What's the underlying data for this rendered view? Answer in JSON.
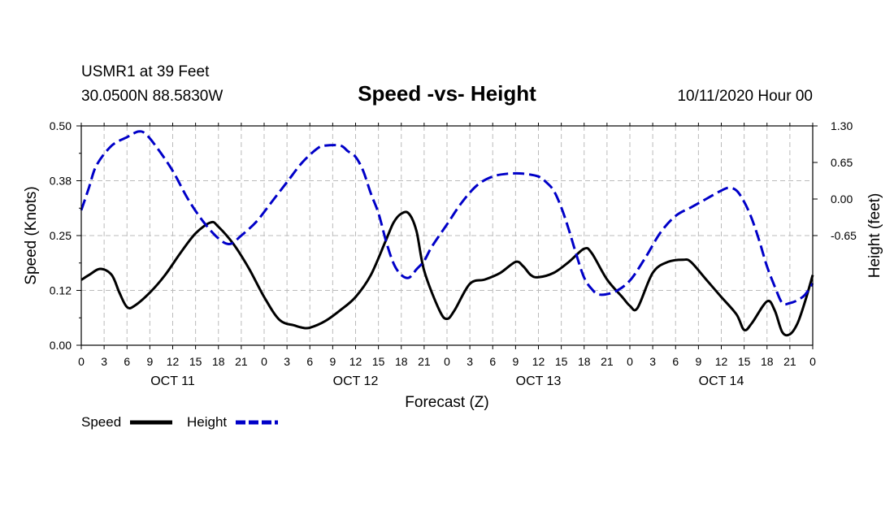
{
  "header": {
    "station": "USMR1 at 39 Feet",
    "location": "30.0500N 88.5830W",
    "title": "Speed -vs- Height",
    "datetime": "10/11/2020 Hour 00"
  },
  "chart_data": {
    "type": "line",
    "title": "Speed -vs- Height",
    "xlabel": "Forecast (Z)",
    "ylabel_left": "Speed (Knots)",
    "ylabel_right": "Height (feet)",
    "x_hours_range": [
      0,
      96
    ],
    "ylim_left": [
      0,
      0.5
    ],
    "ylim_right": [
      -2.6,
      1.3
    ],
    "yticks_left": [
      "0.00",
      "0.12",
      "0.25",
      "0.38",
      "0.50"
    ],
    "yticks_left_values": [
      0,
      0.125,
      0.25,
      0.375,
      0.5
    ],
    "yticks_right": [
      "1.30",
      "0.65",
      "0.00",
      "-0.65"
    ],
    "yticks_right_values": [
      1.3,
      0.65,
      0,
      -0.65
    ],
    "xticks": [
      "0",
      "3",
      "6",
      "9",
      "12",
      "15",
      "18",
      "21",
      "0",
      "3",
      "6",
      "9",
      "12",
      "15",
      "18",
      "21",
      "0",
      "3",
      "6",
      "9",
      "12",
      "15",
      "18",
      "21",
      "0",
      "3",
      "6",
      "9",
      "12",
      "15",
      "18",
      "21",
      "0"
    ],
    "day_labels": [
      {
        "label": "OCT 11",
        "hour": 12
      },
      {
        "label": "OCT 12",
        "hour": 36
      },
      {
        "label": "OCT 13",
        "hour": 60
      },
      {
        "label": "OCT 14",
        "hour": 84
      }
    ],
    "grid": true,
    "legend_position": "bottom-left",
    "series": [
      {
        "name": "Speed",
        "axis": "left",
        "color": "#000000",
        "dash": false,
        "points": [
          [
            0,
            0.149
          ],
          [
            1,
            0.16
          ],
          [
            2.5,
            0.174
          ],
          [
            4,
            0.16
          ],
          [
            5,
            0.12
          ],
          [
            6,
            0.087
          ],
          [
            7,
            0.09
          ],
          [
            9,
            0.12
          ],
          [
            11,
            0.16
          ],
          [
            13,
            0.21
          ],
          [
            15,
            0.255
          ],
          [
            17,
            0.28
          ],
          [
            18,
            0.27
          ],
          [
            20,
            0.23
          ],
          [
            22,
            0.175
          ],
          [
            24,
            0.11
          ],
          [
            26,
            0.058
          ],
          [
            28,
            0.045
          ],
          [
            29,
            0.04
          ],
          [
            30,
            0.04
          ],
          [
            32,
            0.055
          ],
          [
            34,
            0.08
          ],
          [
            36,
            0.11
          ],
          [
            38,
            0.16
          ],
          [
            40,
            0.24
          ],
          [
            41,
            0.28
          ],
          [
            42,
            0.3
          ],
          [
            43,
            0.3
          ],
          [
            44,
            0.26
          ],
          [
            45,
            0.17
          ],
          [
            47,
            0.08
          ],
          [
            48,
            0.06
          ],
          [
            49,
            0.08
          ],
          [
            51,
            0.14
          ],
          [
            53,
            0.15
          ],
          [
            55,
            0.165
          ],
          [
            57,
            0.19
          ],
          [
            58,
            0.18
          ],
          [
            59,
            0.16
          ],
          [
            60,
            0.155
          ],
          [
            62,
            0.165
          ],
          [
            64,
            0.19
          ],
          [
            66,
            0.22
          ],
          [
            67,
            0.21
          ],
          [
            69,
            0.15
          ],
          [
            71,
            0.11
          ],
          [
            72,
            0.09
          ],
          [
            73,
            0.085
          ],
          [
            75,
            0.165
          ],
          [
            77,
            0.19
          ],
          [
            79,
            0.195
          ],
          [
            80,
            0.19
          ],
          [
            82,
            0.15
          ],
          [
            84,
            0.11
          ],
          [
            86,
            0.07
          ],
          [
            87,
            0.035
          ],
          [
            88,
            0.05
          ],
          [
            90,
            0.1
          ],
          [
            91,
            0.08
          ],
          [
            92,
            0.03
          ],
          [
            93,
            0.025
          ],
          [
            94,
            0.05
          ],
          [
            95,
            0.1
          ],
          [
            96,
            0.16
          ]
        ]
      },
      {
        "name": "Height",
        "axis": "right",
        "color": "#0000c8",
        "dash": true,
        "points": [
          [
            0,
            -0.2
          ],
          [
            1,
            0.2
          ],
          [
            2,
            0.6
          ],
          [
            4,
            0.95
          ],
          [
            6,
            1.1
          ],
          [
            7.5,
            1.2
          ],
          [
            8.5,
            1.15
          ],
          [
            10,
            0.9
          ],
          [
            12,
            0.5
          ],
          [
            14,
            0.0
          ],
          [
            16,
            -0.4
          ],
          [
            18,
            -0.7
          ],
          [
            19.5,
            -0.8
          ],
          [
            21,
            -0.65
          ],
          [
            23,
            -0.4
          ],
          [
            25,
            -0.05
          ],
          [
            27,
            0.3
          ],
          [
            29,
            0.65
          ],
          [
            31,
            0.9
          ],
          [
            32,
            0.95
          ],
          [
            34,
            0.95
          ],
          [
            35,
            0.85
          ],
          [
            36,
            0.75
          ],
          [
            37,
            0.5
          ],
          [
            38,
            0.1
          ],
          [
            39,
            -0.25
          ],
          [
            40,
            -0.75
          ],
          [
            41,
            -1.15
          ],
          [
            42,
            -1.35
          ],
          [
            43,
            -1.4
          ],
          [
            44,
            -1.25
          ],
          [
            45,
            -1.1
          ],
          [
            46,
            -0.85
          ],
          [
            48,
            -0.45
          ],
          [
            50,
            -0.05
          ],
          [
            52,
            0.25
          ],
          [
            54,
            0.4
          ],
          [
            56,
            0.45
          ],
          [
            58,
            0.45
          ],
          [
            60,
            0.4
          ],
          [
            61,
            0.3
          ],
          [
            62,
            0.15
          ],
          [
            63,
            -0.15
          ],
          [
            64,
            -0.55
          ],
          [
            65,
            -1.0
          ],
          [
            66,
            -1.4
          ],
          [
            67,
            -1.6
          ],
          [
            68,
            -1.7
          ],
          [
            70,
            -1.65
          ],
          [
            72,
            -1.45
          ],
          [
            74,
            -1.05
          ],
          [
            76,
            -0.6
          ],
          [
            78,
            -0.3
          ],
          [
            80,
            -0.15
          ],
          [
            82,
            0.0
          ],
          [
            84,
            0.15
          ],
          [
            85,
            0.2
          ],
          [
            86,
            0.15
          ],
          [
            87,
            -0.05
          ],
          [
            88,
            -0.35
          ],
          [
            89,
            -0.75
          ],
          [
            90,
            -1.2
          ],
          [
            91,
            -1.55
          ],
          [
            92,
            -1.85
          ],
          [
            93,
            -1.85
          ],
          [
            94,
            -1.8
          ],
          [
            95,
            -1.7
          ],
          [
            96,
            -1.5
          ]
        ]
      }
    ]
  },
  "legend": {
    "speed_label": "Speed",
    "height_label": "Height"
  }
}
